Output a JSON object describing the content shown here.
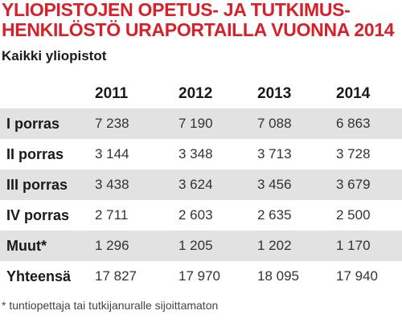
{
  "title_lines": [
    "YLIOPISTOJEN OPETUS- JA TUTKIMUS-",
    "HENKILÖSTÖ URAPORTAILLA VUONNA 2014"
  ],
  "subtitle": "Kaikki yliopistot",
  "footnote": "* tuntiopettaja tai tutkijanuralle sijoittamaton",
  "colors": {
    "title": "#d8202a",
    "row_shade": "#e2e2e2"
  },
  "chart_data": {
    "type": "table",
    "title": "YLIOPISTOJEN OPETUS- JA TUTKIMUS- HENKILÖSTÖ URAPORTAILLA VUONNA 2014",
    "subtitle": "Kaikki yliopistot",
    "columns": [
      "",
      "2011",
      "2012",
      "2013",
      "2014"
    ],
    "rows": [
      [
        "I porras",
        "7 238",
        "7 190",
        "7 088",
        "6 863"
      ],
      [
        "II porras",
        "3 144",
        "3 348",
        "3 713",
        "3 728"
      ],
      [
        "III porras",
        "3 438",
        "3 624",
        "3 456",
        "3 679"
      ],
      [
        "IV porras",
        "2 711",
        "2 603",
        "2 635",
        "2 500"
      ],
      [
        "Muut*",
        "1 296",
        "1 205",
        "1 202",
        "1 170"
      ],
      [
        "Yhteensä",
        "17 827",
        "17 970",
        "18 095",
        "17 940"
      ]
    ],
    "categories": [
      "I porras",
      "II porras",
      "III porras",
      "IV porras",
      "Muut*",
      "Yhteensä"
    ],
    "series": [
      {
        "name": "2011",
        "values": [
          7238,
          3144,
          3438,
          2711,
          1296,
          17827
        ]
      },
      {
        "name": "2012",
        "values": [
          7190,
          3348,
          3624,
          2603,
          1205,
          17970
        ]
      },
      {
        "name": "2013",
        "values": [
          7088,
          3713,
          3456,
          2635,
          1202,
          18095
        ]
      },
      {
        "name": "2014",
        "values": [
          6863,
          3728,
          3679,
          2500,
          1170,
          17940
        ]
      }
    ]
  }
}
